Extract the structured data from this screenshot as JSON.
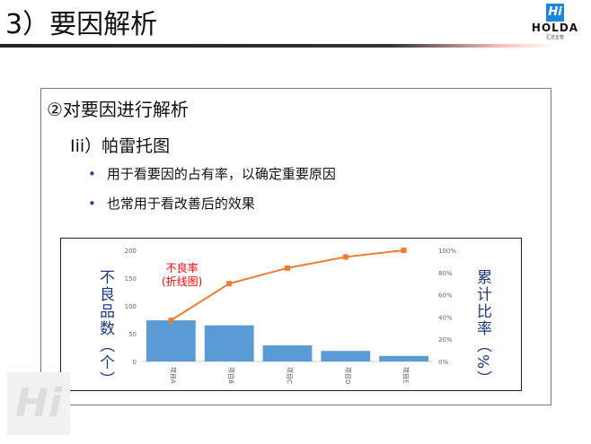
{
  "header": {
    "title": "3）要因解析",
    "logo_name": "HOLDA",
    "logo_sub": "汇达企管",
    "logo_mark": "Hi"
  },
  "section": {
    "heading": "②对要因进行解析",
    "subheading": "Iii）帕雷托图",
    "bullets": [
      "用于看要因的占有率，以确定重要原因",
      "也常用于看改善后的效果"
    ]
  },
  "chart_data": {
    "type": "bar+line",
    "categories": [
      "项目A",
      "项目B",
      "项目C",
      "项目D",
      "项目E"
    ],
    "series": [
      {
        "type": "bar",
        "values": [
          74,
          65,
          29,
          19,
          10
        ],
        "color": "#5b9bd5"
      },
      {
        "type": "line",
        "axis": "right",
        "values": [
          37,
          70,
          84,
          94,
          100
        ],
        "color": "#ed7d31"
      }
    ],
    "ylabel": "不良品数（个）",
    "y2label": "累计比率（%）",
    "ylim": [
      0,
      200
    ],
    "yticks": [
      0,
      50,
      100,
      150,
      200
    ],
    "y2lim": [
      0,
      100
    ],
    "y2ticks": [
      "0%",
      "20%",
      "40%",
      "60%",
      "80%",
      "100%"
    ],
    "annotation": [
      "不良率",
      "(折线图)"
    ],
    "annotation_color": "#ff0000"
  }
}
